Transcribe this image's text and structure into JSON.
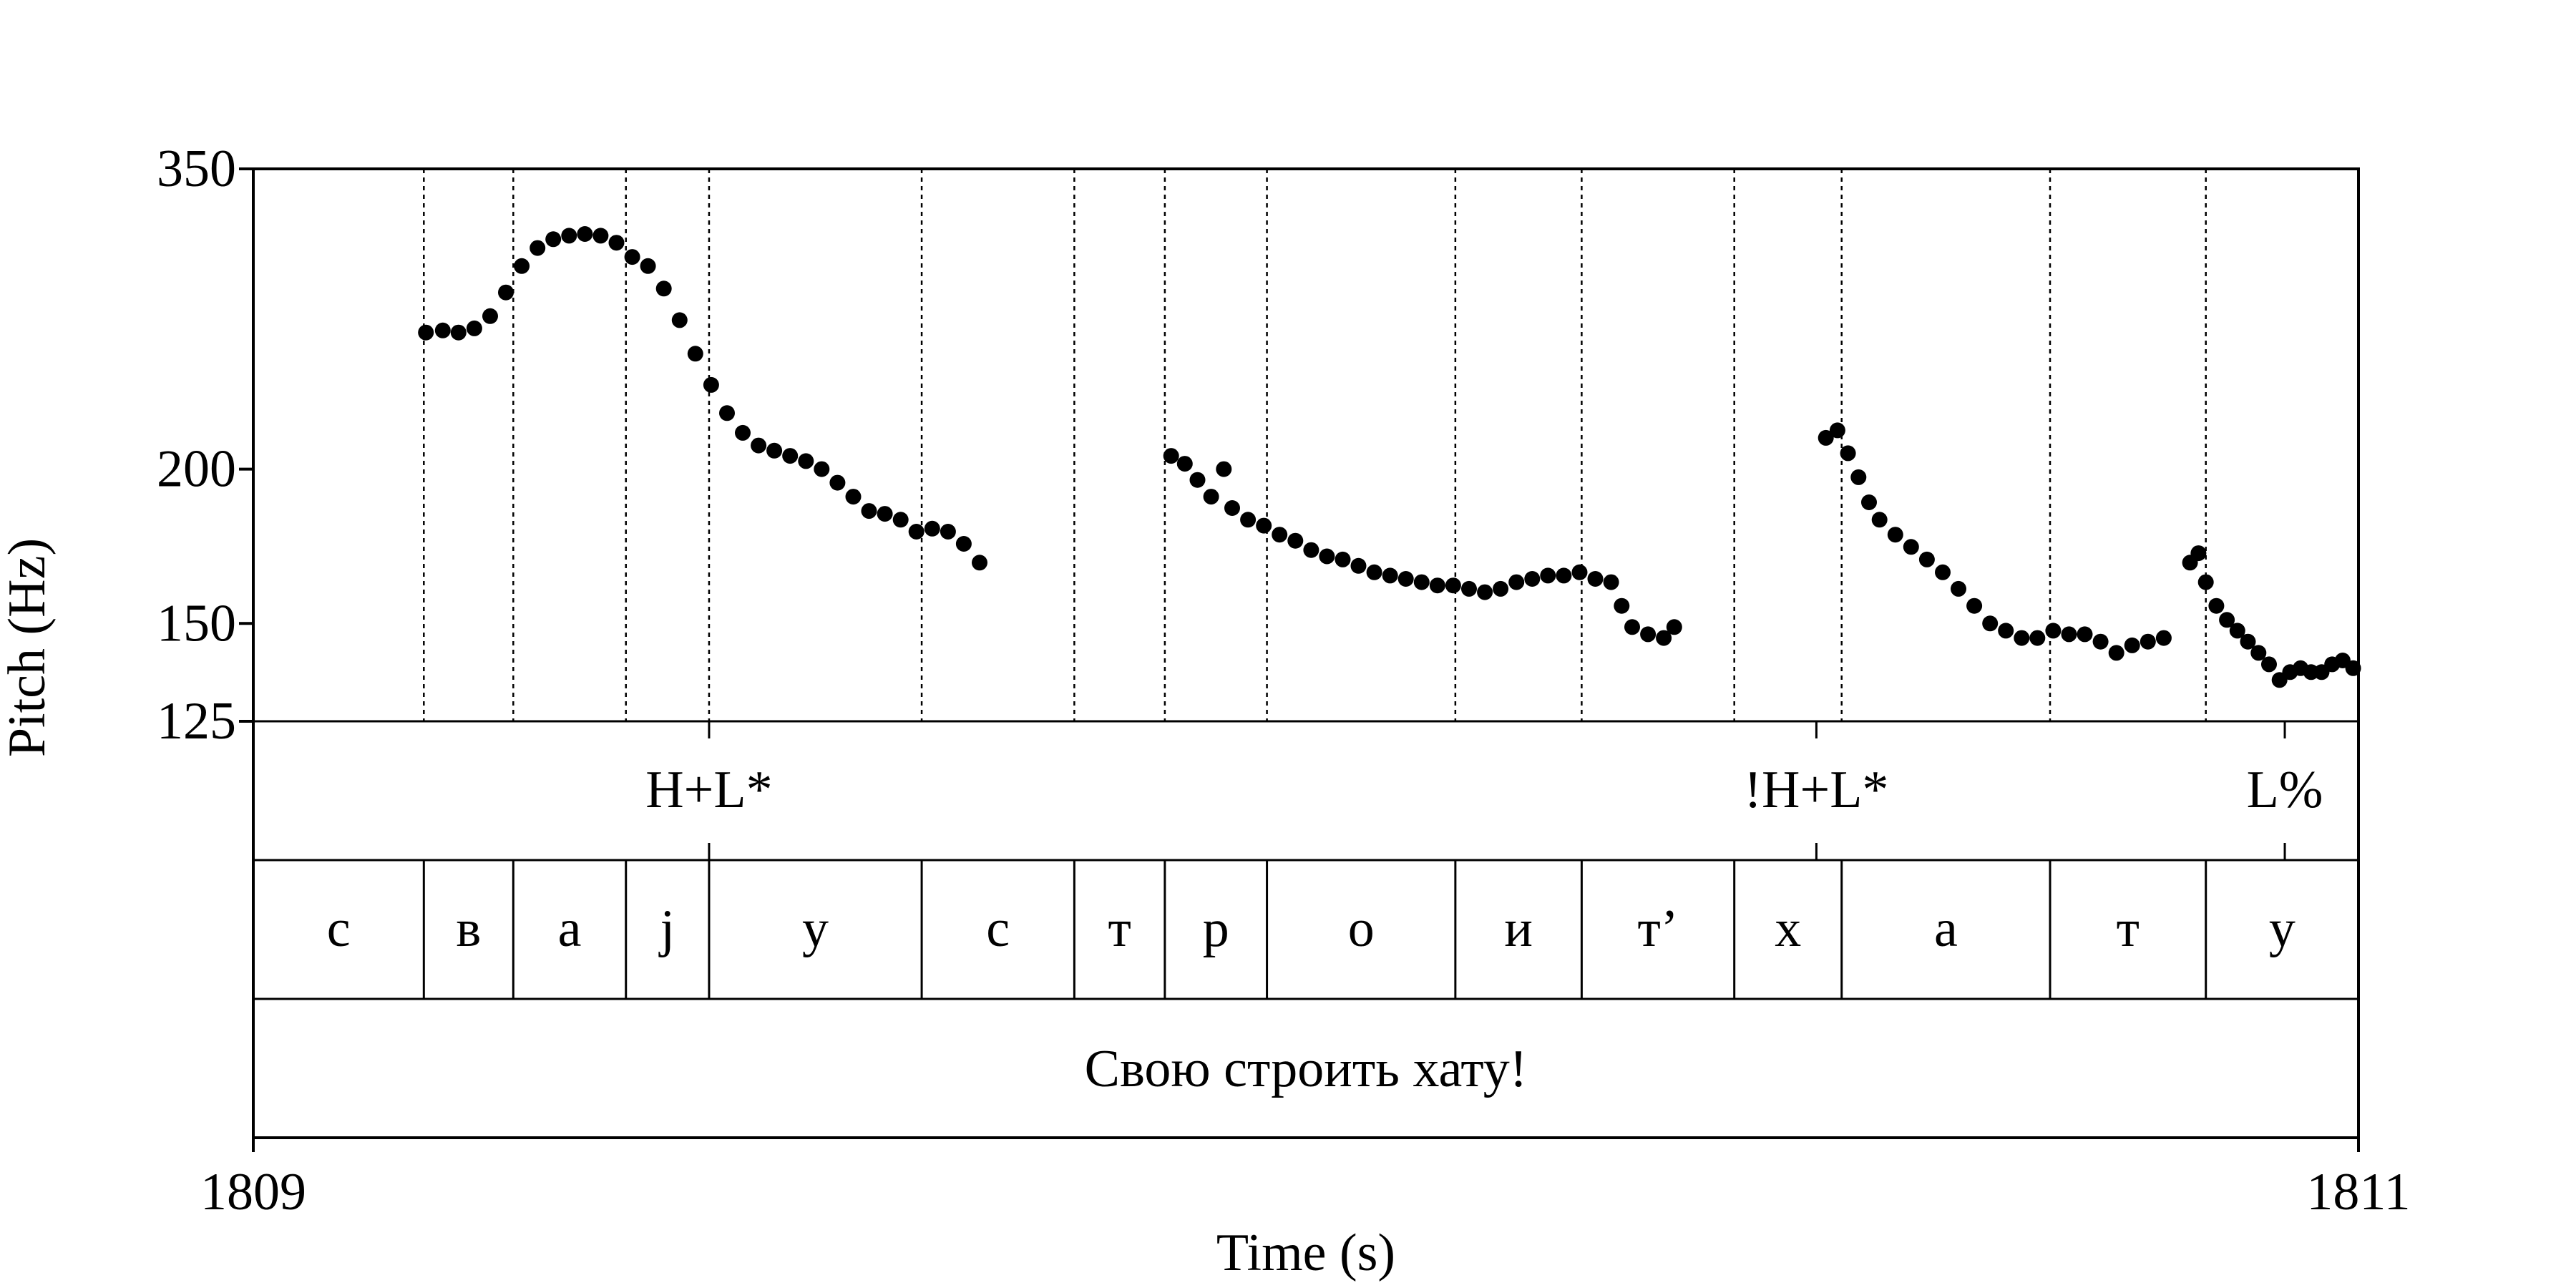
{
  "chart_data": {
    "type": "scatter",
    "xlabel": "Time (s)",
    "ylabel": "Pitch (Hz)",
    "xlim": [
      1809,
      1811
    ],
    "ylim": [
      125,
      350
    ],
    "y_scale": "log",
    "y_ticks": [
      125,
      150,
      200,
      350
    ],
    "x_tick_labels": [
      "1809",
      "1811"
    ],
    "grid": false,
    "pitch_contours": [
      [
        [
          1809.164,
          258
        ],
        [
          1809.18,
          259
        ],
        [
          1809.195,
          258
        ],
        [
          1809.21,
          260
        ],
        [
          1809.225,
          266
        ],
        [
          1809.24,
          278
        ],
        [
          1809.255,
          292
        ],
        [
          1809.27,
          302
        ],
        [
          1809.285,
          307
        ],
        [
          1809.3,
          309
        ],
        [
          1809.315,
          310
        ],
        [
          1809.33,
          309
        ],
        [
          1809.345,
          305
        ],
        [
          1809.36,
          297
        ],
        [
          1809.375,
          292
        ],
        [
          1809.39,
          280
        ],
        [
          1809.405,
          264
        ],
        [
          1809.42,
          248
        ],
        [
          1809.435,
          234
        ],
        [
          1809.45,
          222
        ],
        [
          1809.465,
          214
        ],
        [
          1809.48,
          209
        ],
        [
          1809.495,
          207
        ],
        [
          1809.51,
          205
        ],
        [
          1809.525,
          203
        ],
        [
          1809.54,
          200
        ],
        [
          1809.555,
          195
        ],
        [
          1809.57,
          190
        ],
        [
          1809.585,
          185
        ],
        [
          1809.6,
          184
        ],
        [
          1809.615,
          182
        ],
        [
          1809.63,
          178
        ],
        [
          1809.645,
          179
        ],
        [
          1809.66,
          178
        ],
        [
          1809.675,
          174
        ],
        [
          1809.69,
          168
        ]
      ],
      [
        [
          1809.872,
          205
        ],
        [
          1809.885,
          202
        ],
        [
          1809.897,
          196
        ],
        [
          1809.91,
          190
        ],
        [
          1809.922,
          200
        ],
        [
          1809.93,
          186
        ],
        [
          1809.945,
          182
        ],
        [
          1809.96,
          180
        ],
        [
          1809.975,
          177
        ],
        [
          1809.99,
          175
        ],
        [
          1810.005,
          172
        ],
        [
          1810.02,
          170
        ],
        [
          1810.035,
          169
        ],
        [
          1810.05,
          167
        ],
        [
          1810.065,
          165
        ],
        [
          1810.08,
          164
        ],
        [
          1810.095,
          163
        ],
        [
          1810.11,
          162
        ],
        [
          1810.125,
          161
        ],
        [
          1810.14,
          161
        ],
        [
          1810.155,
          160
        ],
        [
          1810.17,
          159
        ],
        [
          1810.185,
          160
        ],
        [
          1810.2,
          162
        ],
        [
          1810.215,
          163
        ],
        [
          1810.23,
          164
        ],
        [
          1810.245,
          164
        ],
        [
          1810.26,
          165
        ],
        [
          1810.275,
          163
        ],
        [
          1810.29,
          162
        ],
        [
          1810.3,
          155
        ],
        [
          1810.31,
          149
        ],
        [
          1810.325,
          147
        ],
        [
          1810.34,
          146
        ],
        [
          1810.35,
          149
        ]
      ],
      [
        [
          1810.494,
          212
        ],
        [
          1810.505,
          215
        ],
        [
          1810.515,
          206
        ],
        [
          1810.525,
          197
        ],
        [
          1810.535,
          188
        ],
        [
          1810.545,
          182
        ],
        [
          1810.56,
          177
        ],
        [
          1810.575,
          173
        ],
        [
          1810.59,
          169
        ],
        [
          1810.605,
          165
        ],
        [
          1810.62,
          160
        ],
        [
          1810.635,
          155
        ],
        [
          1810.65,
          150
        ],
        [
          1810.665,
          148
        ],
        [
          1810.68,
          146
        ],
        [
          1810.695,
          146
        ],
        [
          1810.71,
          148
        ],
        [
          1810.725,
          147
        ],
        [
          1810.74,
          147
        ],
        [
          1810.755,
          145
        ],
        [
          1810.77,
          142
        ],
        [
          1810.785,
          144
        ],
        [
          1810.8,
          145
        ],
        [
          1810.815,
          146
        ]
      ],
      [
        [
          1810.84,
          168
        ],
        [
          1810.848,
          171
        ],
        [
          1810.855,
          162
        ],
        [
          1810.865,
          155
        ],
        [
          1810.875,
          151
        ],
        [
          1810.885,
          148
        ],
        [
          1810.895,
          145
        ],
        [
          1810.905,
          142
        ],
        [
          1810.915,
          139
        ],
        [
          1810.925,
          135
        ],
        [
          1810.935,
          137
        ],
        [
          1810.945,
          138
        ],
        [
          1810.955,
          137
        ],
        [
          1810.965,
          137
        ],
        [
          1810.975,
          139
        ],
        [
          1810.985,
          140
        ],
        [
          1810.995,
          138
        ]
      ]
    ],
    "tones": [
      {
        "label": "H+L*",
        "time": 1809.433
      },
      {
        "label": "!H+L*",
        "time": 1810.485
      },
      {
        "label": "L%",
        "time": 1810.93
      }
    ],
    "segments": [
      {
        "label": "с",
        "start": 1809.0,
        "end": 1809.162
      },
      {
        "label": "в",
        "start": 1809.162,
        "end": 1809.247
      },
      {
        "label": "а",
        "start": 1809.247,
        "end": 1809.354
      },
      {
        "label": "j",
        "start": 1809.354,
        "end": 1809.433
      },
      {
        "label": "у",
        "start": 1809.433,
        "end": 1809.635
      },
      {
        "label": "с",
        "start": 1809.635,
        "end": 1809.78
      },
      {
        "label": "т",
        "start": 1809.78,
        "end": 1809.866
      },
      {
        "label": "р",
        "start": 1809.866,
        "end": 1809.963
      },
      {
        "label": "о",
        "start": 1809.963,
        "end": 1810.142
      },
      {
        "label": "и",
        "start": 1810.142,
        "end": 1810.262
      },
      {
        "label": "т’",
        "start": 1810.262,
        "end": 1810.407
      },
      {
        "label": "х",
        "start": 1810.407,
        "end": 1810.509
      },
      {
        "label": "а",
        "start": 1810.509,
        "end": 1810.707
      },
      {
        "label": "т",
        "start": 1810.707,
        "end": 1810.855
      },
      {
        "label": "у",
        "start": 1810.855,
        "end": 1811.0
      }
    ],
    "utterance": "Свою строить хату!"
  }
}
